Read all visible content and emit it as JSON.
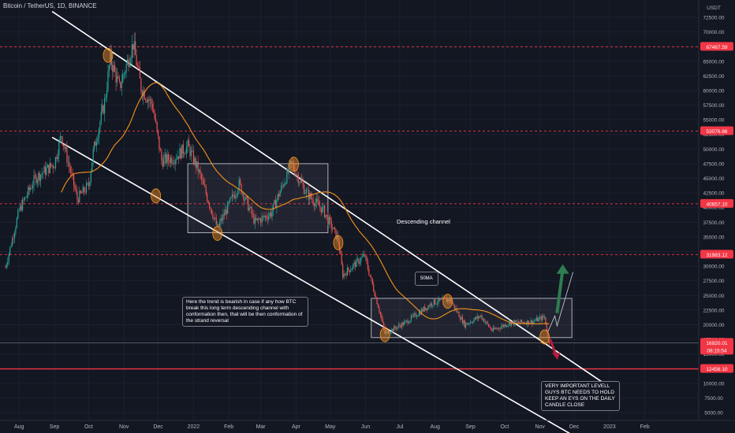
{
  "header": {
    "symbol_label": "Bitcoin / TetherUS, 1D, BINANCE"
  },
  "chart_data": {
    "type": "candlestick",
    "currency": "USDT",
    "x_ticks": [
      "Aug",
      "Sep",
      "Oct",
      "Nov",
      "Dec",
      "2022",
      "Feb",
      "Mar",
      "Apr",
      "May",
      "Jun",
      "Jul",
      "Aug",
      "Sep",
      "Oct",
      "Nov",
      "Dec",
      "2023",
      "Feb"
    ],
    "y_ticks": [
      72500,
      70000,
      67500,
      65000,
      62500,
      60000,
      57500,
      55000,
      52500,
      50000,
      47500,
      45000,
      42500,
      40000,
      37500,
      35000,
      32500,
      30000,
      27500,
      25000,
      22500,
      20000,
      17500,
      15000,
      12500,
      10000,
      7500,
      5000
    ],
    "ylim": [
      4000,
      75000
    ],
    "price_levels": [
      {
        "label": "67467.59",
        "value": 67467.59
      },
      {
        "label": "53076.66",
        "value": 53076.66
      },
      {
        "label": "40657.10",
        "value": 40657.1
      },
      {
        "label": "31983.12",
        "value": 31983.12
      },
      {
        "label": "12456.10",
        "value": 12456.1
      }
    ],
    "current_price": {
      "label": "16920.01",
      "value": 16920.01,
      "countdown": "08:15:54"
    },
    "moving_average_label": "50MA",
    "channel_label": "Descending channel",
    "annotations": [
      "Here the trend is bearish in case if any how BTC break this long term descending channel with conformation then, that will be then conformation of the strand reversal",
      "VERY IMPORTANT LEVELL GUYS BTC NEEDS TO HOLD KEEP AN EYS ON THE DAILY CANDLE CLOSE"
    ],
    "price_path": [
      [
        "2021-07-20",
        29800
      ],
      [
        "2021-08-01",
        39500
      ],
      [
        "2021-08-15",
        45000
      ],
      [
        "2021-09-01",
        47500
      ],
      [
        "2021-09-07",
        52500
      ],
      [
        "2021-09-21",
        41500
      ],
      [
        "2021-10-01",
        43800
      ],
      [
        "2021-10-05",
        49500
      ],
      [
        "2021-10-15",
        58000
      ],
      [
        "2021-10-20",
        65500
      ],
      [
        "2021-10-28",
        60500
      ],
      [
        "2021-11-09",
        68000
      ],
      [
        "2021-11-16",
        60500
      ],
      [
        "2021-11-26",
        57500
      ],
      [
        "2021-12-04",
        48000
      ],
      [
        "2021-12-15",
        48500
      ],
      [
        "2021-12-27",
        50500
      ],
      [
        "2022-01-05",
        46500
      ],
      [
        "2022-01-22",
        36500
      ],
      [
        "2022-02-10",
        44000
      ],
      [
        "2022-02-24",
        37500
      ],
      [
        "2022-03-10",
        39000
      ],
      [
        "2022-03-28",
        47500
      ],
      [
        "2022-04-10",
        42500
      ],
      [
        "2022-04-25",
        39500
      ],
      [
        "2022-05-08",
        34500
      ],
      [
        "2022-05-12",
        28500
      ],
      [
        "2022-05-31",
        31800
      ],
      [
        "2022-06-13",
        22500
      ],
      [
        "2022-06-18",
        18500
      ],
      [
        "2022-07-07",
        20500
      ],
      [
        "2022-07-30",
        23800
      ],
      [
        "2022-08-14",
        24300
      ],
      [
        "2022-08-27",
        20000
      ],
      [
        "2022-09-10",
        21500
      ],
      [
        "2022-09-20",
        19000
      ],
      [
        "2022-10-05",
        20300
      ],
      [
        "2022-10-25",
        20500
      ],
      [
        "2022-11-05",
        21300
      ],
      [
        "2022-11-09",
        16920
      ]
    ]
  }
}
